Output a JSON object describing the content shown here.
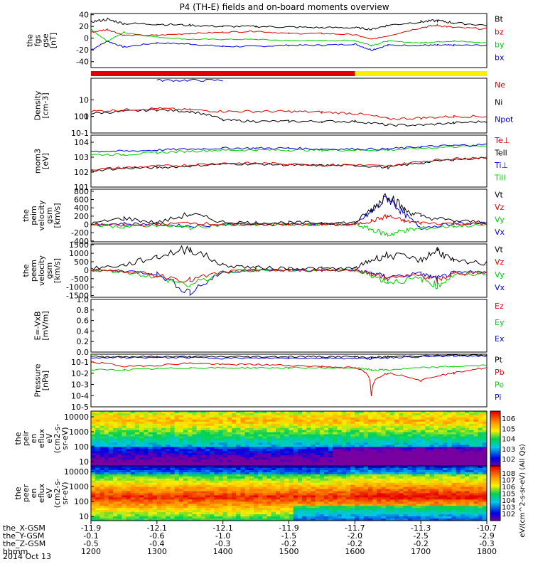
{
  "title": "P4 (TH-E) fields and on-board moments overview",
  "date": "2014 Oct 13",
  "x_axis": {
    "rows": [
      {
        "label": "the_X-GSM",
        "values": [
          "-11.9",
          "-12.1",
          "-12.1",
          "-11.9",
          "-11.7",
          "-11.3",
          "-10.7"
        ]
      },
      {
        "label": "the_Y-GSM",
        "values": [
          "-0.1",
          "-0.6",
          "-1.0",
          "-1.5",
          "-2.0",
          "-2.5",
          "-2.9"
        ]
      },
      {
        "label": "the_Z-GSM",
        "values": [
          "-0.5",
          "-0.4",
          "-0.3",
          "-0.2",
          "-0.2",
          "-0.2",
          "-0.3"
        ]
      },
      {
        "label": "hhmm",
        "values": [
          "1200",
          "1300",
          "1400",
          "1500",
          "1600",
          "1700",
          "1800"
        ]
      }
    ]
  },
  "colors": {
    "black": "#000000",
    "red": "#e00000",
    "green": "#00cc00",
    "blue": "#0000dd",
    "yellow": "#ffee00"
  },
  "orbit_bar": {
    "segments": [
      {
        "from": "1200",
        "to": "1600",
        "color": "#e00000"
      },
      {
        "from": "1600",
        "to": "1800",
        "color": "#ffee00"
      }
    ]
  },
  "chart_data": [
    {
      "type": "line",
      "panel": "fgm",
      "ylabel": [
        "the",
        "fgs",
        "gse",
        "[nT]"
      ],
      "ylim": [
        -50,
        42
      ],
      "ticks": [
        "40",
        "20",
        "0",
        "-20",
        "-40"
      ],
      "legend": [
        {
          "name": "Bt",
          "color": "#000000"
        },
        {
          "name": "bz",
          "color": "#e00000"
        },
        {
          "name": "by",
          "color": "#00cc00"
        },
        {
          "name": "bx",
          "color": "#0000dd"
        }
      ],
      "x": [
        1200,
        1215,
        1230,
        1300,
        1330,
        1400,
        1430,
        1500,
        1530,
        1600,
        1615,
        1630,
        1700,
        1715,
        1730,
        1800
      ],
      "series": [
        {
          "name": "Bt",
          "values": [
            28,
            32,
            25,
            24,
            22,
            20,
            20,
            19,
            18,
            18,
            15,
            22,
            28,
            30,
            26,
            22
          ]
        },
        {
          "name": "bz",
          "values": [
            10,
            15,
            5,
            5,
            8,
            10,
            12,
            8,
            8,
            6,
            -2,
            4,
            18,
            22,
            18,
            16
          ]
        },
        {
          "name": "by",
          "values": [
            15,
            -5,
            10,
            2,
            -2,
            -2,
            -2,
            -4,
            -4,
            -4,
            -12,
            -5,
            -8,
            -6,
            -5,
            -8
          ]
        },
        {
          "name": "bx",
          "values": [
            -20,
            -5,
            -15,
            -8,
            -10,
            -14,
            -14,
            -12,
            -12,
            -10,
            -20,
            -12,
            -12,
            -12,
            -12,
            -12
          ]
        }
      ]
    },
    {
      "type": "line",
      "panel": "density",
      "ylabel": [
        "Density",
        "[cm-3]"
      ],
      "ylim": [
        0.1,
        200
      ],
      "scale": "log",
      "ticks": [
        "100",
        "10",
        "1",
        "10-1"
      ],
      "legend": [
        {
          "name": "Ne",
          "color": "#e00000"
        },
        {
          "name": "Ni",
          "color": "#000000"
        },
        {
          "name": "Npot",
          "color": "#0000dd"
        }
      ],
      "x": [
        1200,
        1230,
        1300,
        1330,
        1400,
        1430,
        1500,
        1530,
        1600,
        1630,
        1700,
        1730,
        1800
      ],
      "series": [
        {
          "name": "Ne",
          "values": [
            2,
            2.5,
            3,
            2.5,
            2,
            2,
            2,
            1.8,
            1.5,
            0.7,
            0.8,
            1,
            1
          ]
        },
        {
          "name": "Ni",
          "values": [
            1.5,
            2,
            2.5,
            2,
            0.6,
            0.5,
            0.5,
            0.5,
            0.5,
            0.3,
            0.3,
            0.4,
            0.5
          ]
        },
        {
          "name": "Npot",
          "values": [
            null,
            null,
            150,
            150,
            150,
            null,
            null,
            null,
            null,
            null,
            null,
            null,
            null
          ]
        }
      ]
    },
    {
      "type": "line",
      "panel": "temperature",
      "ylabel": [
        "mom3",
        "[eV]"
      ],
      "ylim": [
        10,
        30000
      ],
      "scale": "log",
      "ticks": [
        "104",
        "103",
        "102",
        "101"
      ],
      "legend": [
        {
          "name": "Te⊥",
          "color": "#e00000"
        },
        {
          "name": "Tell",
          "color": "#000000"
        },
        {
          "name": "Ti⊥",
          "color": "#0000dd"
        },
        {
          "name": "Till",
          "color": "#00cc00"
        }
      ],
      "x": [
        1200,
        1230,
        1300,
        1330,
        1400,
        1430,
        1500,
        1530,
        1600,
        1630,
        1700,
        1730,
        1800
      ],
      "series": [
        {
          "name": "Te⊥",
          "values": [
            150,
            200,
            250,
            300,
            400,
            400,
            350,
            300,
            300,
            250,
            500,
            800,
            1000
          ]
        },
        {
          "name": "Tell",
          "values": [
            120,
            180,
            200,
            250,
            350,
            350,
            300,
            280,
            280,
            200,
            400,
            700,
            900
          ]
        },
        {
          "name": "Ti⊥",
          "values": [
            2500,
            2500,
            3000,
            3500,
            4000,
            4000,
            4000,
            3500,
            3500,
            3500,
            5000,
            6000,
            7000
          ]
        },
        {
          "name": "Till",
          "values": [
            1500,
            1500,
            2000,
            2500,
            3000,
            3000,
            3000,
            3000,
            3000,
            3000,
            4000,
            5000,
            6000
          ]
        }
      ]
    },
    {
      "type": "line",
      "panel": "ion-velocity",
      "ylabel": [
        "the",
        "peim",
        "velocity",
        "gsm",
        "[km/s]"
      ],
      "ylim": [
        -420,
        850
      ],
      "ticks": [
        "800",
        "600",
        "400",
        "200",
        "0",
        "-200",
        "-400"
      ],
      "legend": [
        {
          "name": "Vt",
          "color": "#000000"
        },
        {
          "name": "Vz",
          "color": "#e00000"
        },
        {
          "name": "Vy",
          "color": "#00cc00"
        },
        {
          "name": "Vx",
          "color": "#0000dd"
        }
      ],
      "x": [
        1200,
        1230,
        1300,
        1330,
        1400,
        1430,
        1500,
        1530,
        1600,
        1615,
        1630,
        1645,
        1700,
        1730,
        1800
      ],
      "series": [
        {
          "name": "Vt",
          "values": [
            20,
            150,
            40,
            250,
            60,
            40,
            40,
            40,
            40,
            350,
            750,
            350,
            200,
            80,
            60
          ]
        },
        {
          "name": "Vz",
          "values": [
            0,
            -30,
            0,
            40,
            0,
            0,
            0,
            0,
            0,
            80,
            200,
            80,
            40,
            20,
            10
          ]
        },
        {
          "name": "Vy",
          "values": [
            0,
            -60,
            -20,
            -80,
            -10,
            0,
            0,
            0,
            0,
            -120,
            -250,
            -150,
            -100,
            -40,
            -20
          ]
        },
        {
          "name": "Vx",
          "values": [
            0,
            20,
            0,
            -40,
            0,
            0,
            0,
            0,
            0,
            300,
            650,
            250,
            -80,
            20,
            20
          ]
        }
      ]
    },
    {
      "type": "line",
      "panel": "electron-velocity",
      "ylabel": [
        "the",
        "peem",
        "velocity",
        "gsm",
        "[km/s]"
      ],
      "ylim": [
        -1600,
        1550
      ],
      "ticks": [
        "1500",
        "1000",
        "500",
        "0",
        "-500",
        "-1000",
        "-1500"
      ],
      "legend": [
        {
          "name": "Vt",
          "color": "#000000"
        },
        {
          "name": "Vz",
          "color": "#e00000"
        },
        {
          "name": "Vy",
          "color": "#00cc00"
        },
        {
          "name": "Vx",
          "color": "#0000dd"
        }
      ],
      "x": [
        1200,
        1230,
        1300,
        1330,
        1400,
        1430,
        1500,
        1530,
        1600,
        1615,
        1630,
        1700,
        1715,
        1730,
        1800
      ],
      "series": [
        {
          "name": "Vt",
          "values": [
            100,
            300,
            800,
            1300,
            300,
            150,
            120,
            100,
            100,
            600,
            900,
            600,
            1200,
            500,
            400
          ]
        },
        {
          "name": "Vz",
          "values": [
            0,
            -50,
            -300,
            -600,
            -100,
            0,
            0,
            0,
            0,
            -200,
            -500,
            -300,
            -600,
            -200,
            -100
          ]
        },
        {
          "name": "Vy",
          "values": [
            0,
            -100,
            -400,
            -900,
            -150,
            0,
            0,
            0,
            0,
            -300,
            -700,
            -500,
            -900,
            -300,
            -200
          ]
        },
        {
          "name": "Vx",
          "values": [
            0,
            -50,
            -200,
            -1300,
            -100,
            0,
            0,
            0,
            0,
            -150,
            -400,
            -200,
            -500,
            -150,
            -100
          ]
        }
      ]
    },
    {
      "type": "line",
      "panel": "efield",
      "ylabel": [
        "E=-VxB",
        "[mV/m]"
      ],
      "ylim": [
        0,
        1
      ],
      "ticks": [
        "1.0",
        "0.8",
        "0.6",
        "0.4",
        "0.2",
        "0.0"
      ],
      "legend": [
        {
          "name": "Ez",
          "color": "#e00000"
        },
        {
          "name": "Ey",
          "color": "#00cc00"
        },
        {
          "name": "Ex",
          "color": "#0000dd"
        }
      ],
      "x": [],
      "series": []
    },
    {
      "type": "line",
      "panel": "pressure",
      "ylabel": [
        "Pressure",
        "[nPa]"
      ],
      "ylim": [
        1e-05,
        0.5
      ],
      "scale": "log",
      "ticks": [
        "10-1",
        "10-2",
        "10-3",
        "10-4",
        "10-5"
      ],
      "legend": [
        {
          "name": "Pt",
          "color": "#000000"
        },
        {
          "name": "Pb",
          "color": "#e00000"
        },
        {
          "name": "Pe",
          "color": "#00cc00"
        },
        {
          "name": "Pi",
          "color": "#0000dd"
        }
      ],
      "x": [
        1200,
        1230,
        1300,
        1330,
        1400,
        1430,
        1500,
        1530,
        1600,
        1615,
        1630,
        1700,
        1730,
        1800
      ],
      "series": [
        {
          "name": "Pt",
          "values": [
            0.3,
            0.3,
            0.3,
            0.3,
            0.3,
            0.3,
            0.3,
            0.3,
            0.3,
            0.25,
            0.3,
            0.35,
            0.4,
            0.4
          ]
        },
        {
          "name": "Pb",
          "values": [
            0.1,
            0.04,
            0.05,
            0.08,
            0.06,
            0.06,
            0.05,
            0.04,
            0.03,
            0.0001,
            0.01,
            0.002,
            0.01,
            0.03
          ]
        },
        {
          "name": "Pe",
          "values": [
            0.02,
            0.02,
            0.025,
            0.03,
            0.03,
            0.03,
            0.03,
            0.03,
            0.03,
            0.02,
            0.02,
            0.03,
            0.04,
            0.05
          ]
        },
        {
          "name": "Pi",
          "values": [
            0.25,
            0.25,
            0.25,
            0.25,
            0.22,
            0.22,
            0.22,
            0.22,
            0.22,
            0.2,
            0.25,
            0.3,
            0.35,
            0.35
          ]
        }
      ]
    },
    {
      "type": "heatmap",
      "panel": "ion-spectrogram",
      "ylabel": [
        "the",
        "peir",
        "en",
        "eflux",
        "eV",
        "(cm2-s-",
        "sr-eV)"
      ],
      "ticks": [
        "10000",
        "1000",
        "100",
        "10"
      ],
      "colorbar_ticks": [
        "106",
        "105",
        "104",
        "103",
        "102"
      ],
      "colorbar_label": "eV/(cm^2-s-sr-eV) (All Qs)"
    },
    {
      "type": "heatmap",
      "panel": "electron-spectrogram",
      "ylabel": [
        "the",
        "peer",
        "en",
        "eflux",
        "eV",
        "(cm2-s-",
        "sr-eV)"
      ],
      "ticks": [
        "10000",
        "1000",
        "100",
        "10"
      ],
      "colorbar_ticks": [
        "108",
        "107",
        "106",
        "105",
        "104",
        "103",
        "102"
      ]
    }
  ]
}
